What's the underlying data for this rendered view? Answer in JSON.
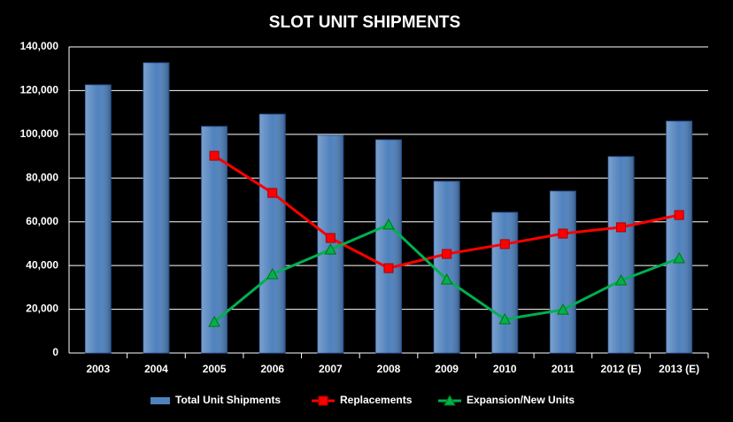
{
  "chart_data": {
    "type": "bar-line",
    "title": "SLOT UNIT SHIPMENTS",
    "categories": [
      "2003",
      "2004",
      "2005",
      "2006",
      "2007",
      "2008",
      "2009",
      "2010",
      "2011",
      "2012 (E)",
      "2013 (E)"
    ],
    "series": [
      {
        "name": "Total Unit Shipments",
        "type": "bar",
        "color": "#4f81bd",
        "values": [
          122600,
          132700,
          103600,
          109200,
          99500,
          97500,
          78500,
          64300,
          74000,
          89800,
          106000
        ]
      },
      {
        "name": "Replacements",
        "type": "line",
        "marker": "square",
        "color": "#ff0000",
        "values": [
          null,
          null,
          90200,
          73200,
          52600,
          38800,
          45300,
          49800,
          54600,
          57500,
          63100
        ]
      },
      {
        "name": "Expansion/New Units",
        "type": "line",
        "marker": "triangle",
        "color": "#00b050",
        "values": [
          null,
          null,
          14200,
          36000,
          47300,
          58700,
          33600,
          15400,
          19800,
          33200,
          43300
        ]
      }
    ],
    "ylim": [
      0,
      140000
    ],
    "yticks": [
      0,
      {
        "value": 20000,
        "label": "20,000"
      },
      {
        "value": 40000,
        "label": "40,000"
      },
      {
        "value": 60000,
        "label": "60,000"
      },
      {
        "value": 80000,
        "label": "80,000"
      },
      {
        "value": 100000,
        "label": "100,000"
      },
      {
        "value": 120000,
        "label": "120,000"
      },
      {
        "value": 140000,
        "label": "140,000"
      }
    ],
    "grid": true,
    "legend": "bottom"
  }
}
